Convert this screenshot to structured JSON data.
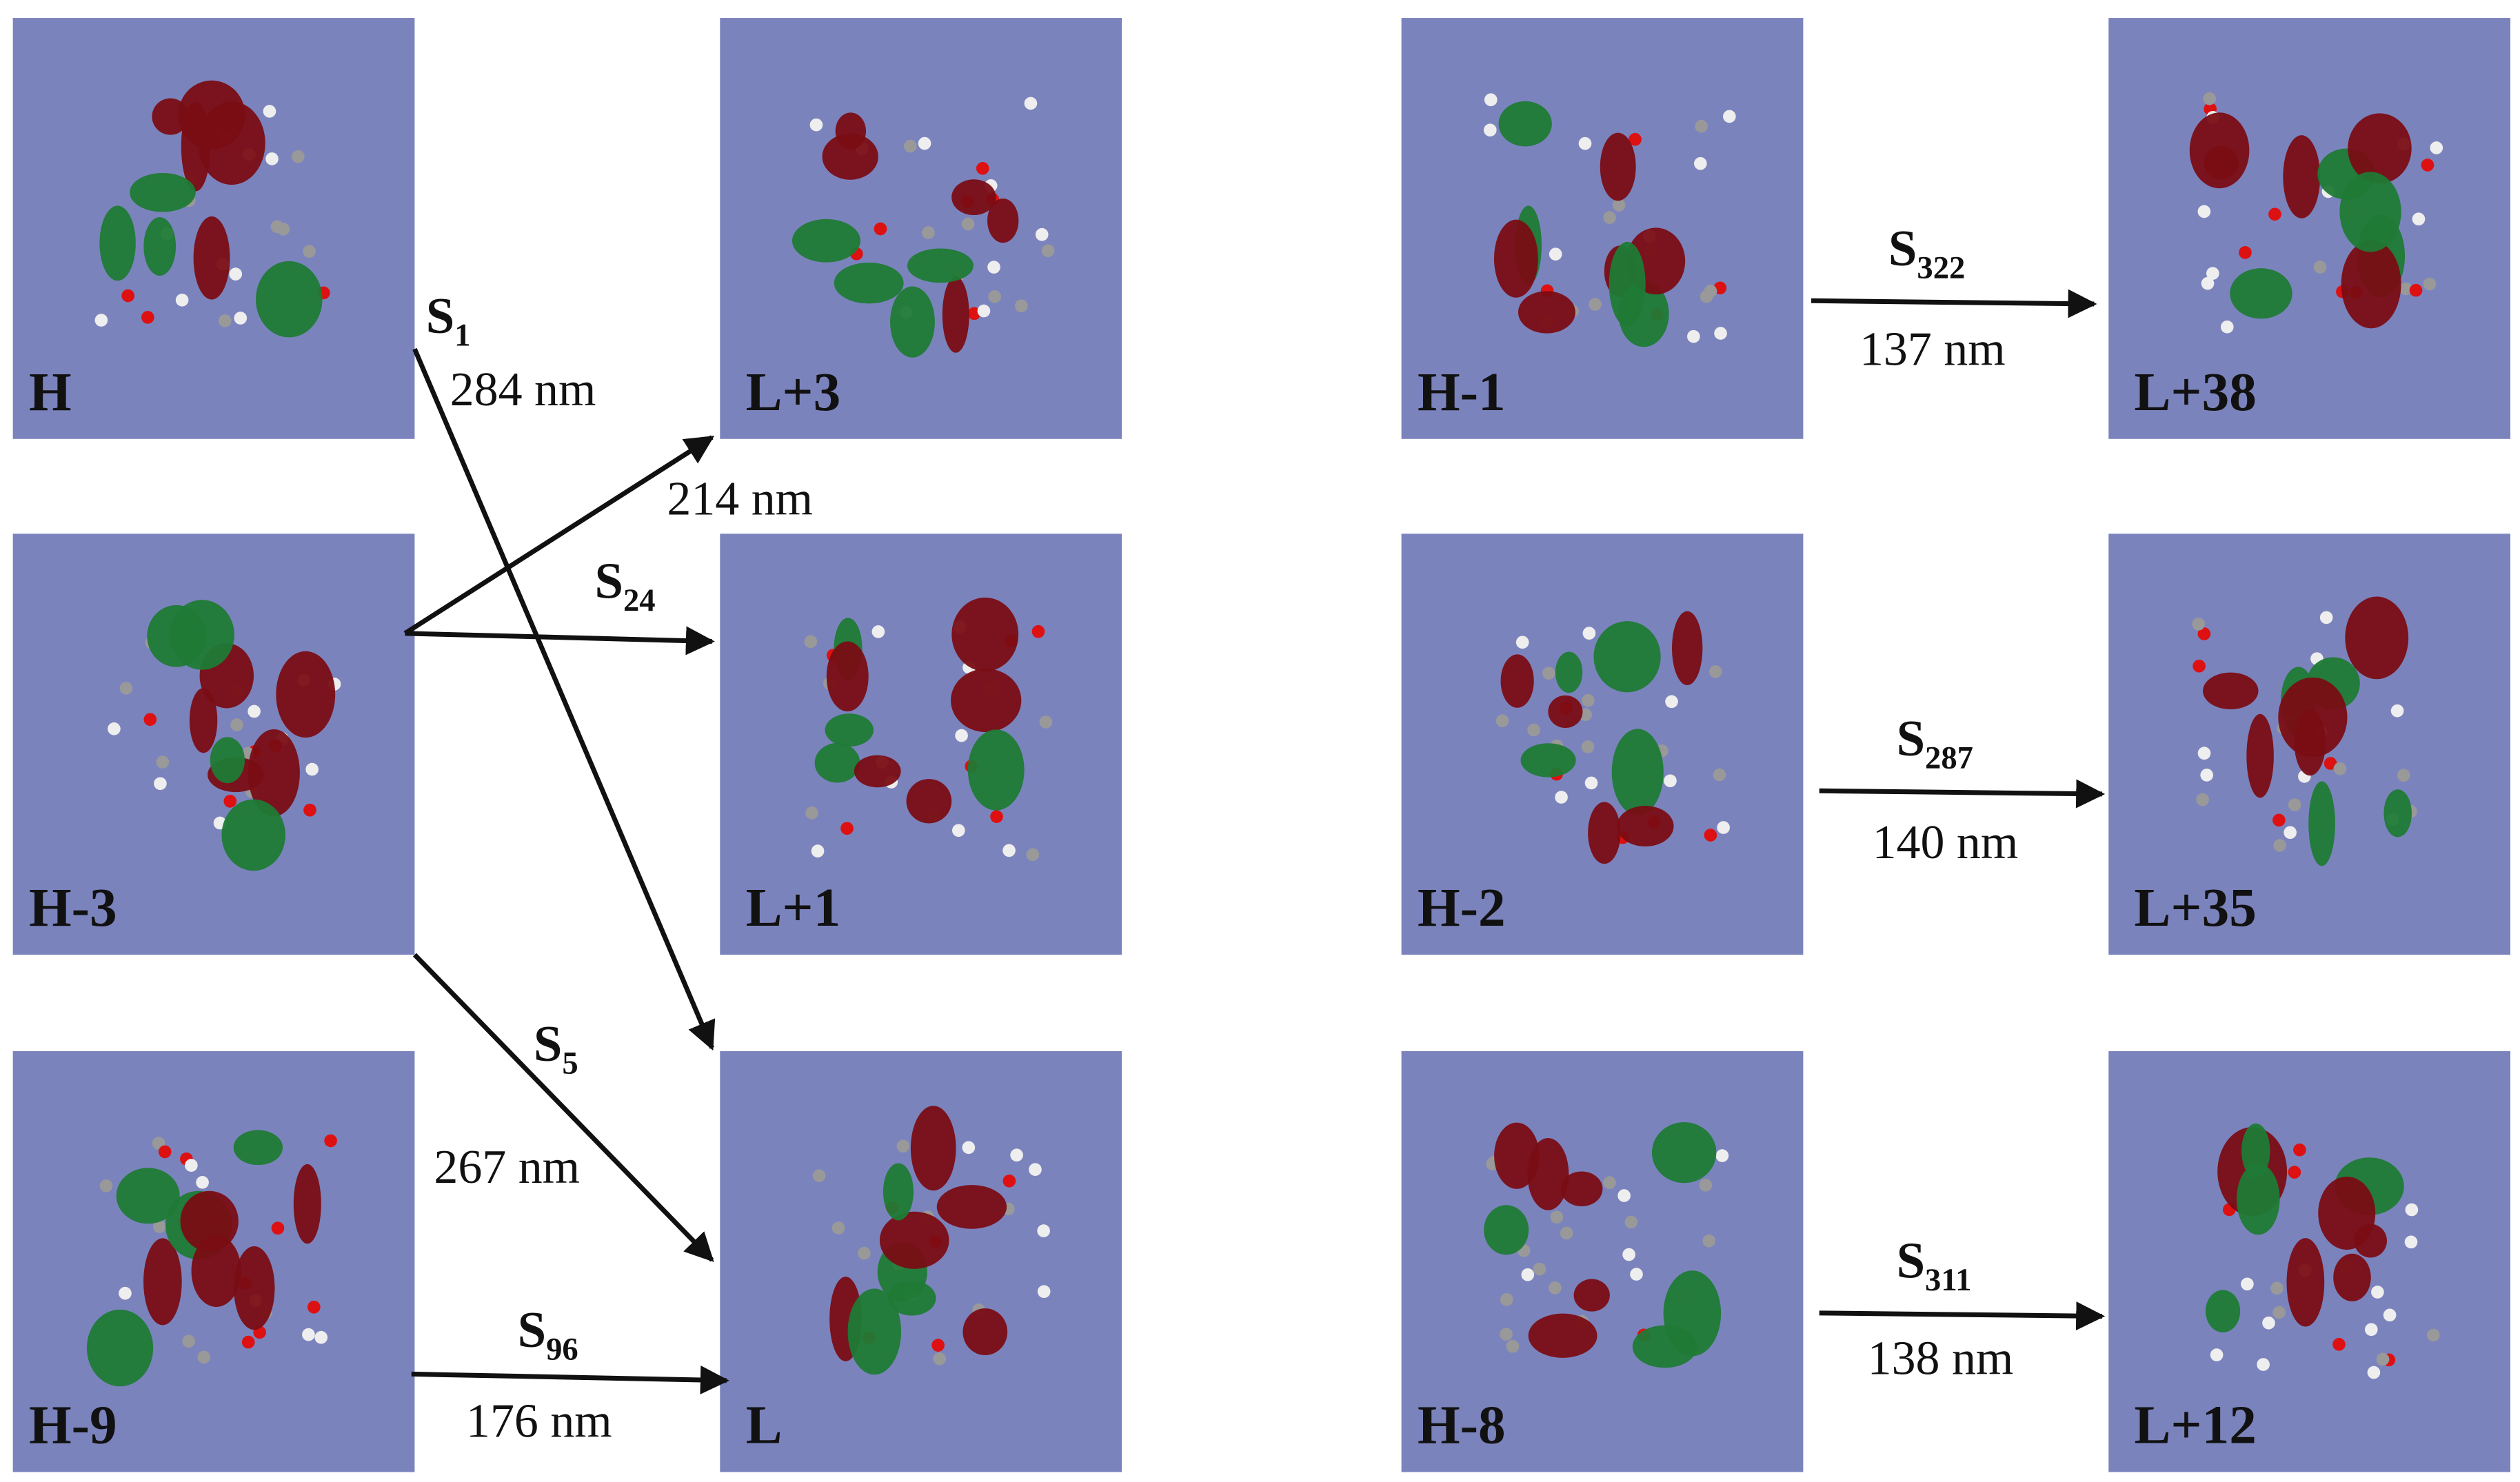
{
  "panels": [
    {
      "label": "H"
    },
    {
      "label": "L+3"
    },
    {
      "label": "H-1"
    },
    {
      "label": "L+38"
    },
    {
      "label": "H-3"
    },
    {
      "label": "L+1"
    },
    {
      "label": "H-2"
    },
    {
      "label": "L+35"
    },
    {
      "label": "H-9"
    },
    {
      "label": "L"
    },
    {
      "label": "H-8"
    },
    {
      "label": "L+12"
    }
  ],
  "transitions": [
    {
      "state": {
        "base": "S",
        "sub": "1"
      },
      "wavelength": "284 nm"
    },
    {
      "wavelength": "214 nm"
    },
    {
      "state": {
        "base": "S",
        "sub": "24"
      }
    },
    {
      "state": {
        "base": "S",
        "sub": "5"
      },
      "wavelength": "267 nm"
    },
    {
      "state": {
        "base": "S",
        "sub": "96"
      },
      "wavelength": "176 nm"
    },
    {
      "state": {
        "base": "S",
        "sub": "322"
      },
      "wavelength": "137 nm"
    },
    {
      "state": {
        "base": "S",
        "sub": "287"
      },
      "wavelength": "140 nm"
    },
    {
      "state": {
        "base": "S",
        "sub": "311"
      },
      "wavelength": "138 nm"
    }
  ]
}
